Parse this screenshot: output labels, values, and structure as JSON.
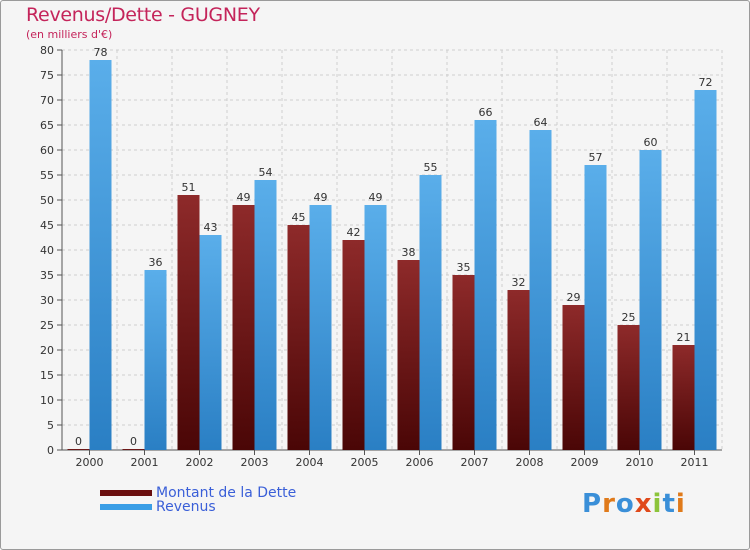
{
  "header": {
    "title": "Revenus/Dette - GUGNEY",
    "subtitle": "(en milliers d'€)"
  },
  "colors": {
    "dette": "#7a1515",
    "revenus": "#3a9ee6",
    "grid": "#cfcfcf",
    "title": "#c4245a"
  },
  "legend": {
    "items": [
      {
        "label": "Montant de la Dette",
        "color": "#6a0f0f"
      },
      {
        "label": "Revenus",
        "color": "#3a9ee6"
      }
    ]
  },
  "logo": {
    "text": "Proxiti",
    "icon": "proxiti-logo"
  },
  "chart_data": {
    "type": "bar",
    "title": "Revenus/Dette - GUGNEY",
    "ylabel": "(en milliers d'€)",
    "xlabel": "",
    "ylim": [
      0,
      80
    ],
    "ytick_step": 5,
    "grid": true,
    "legend_position": "bottom-left",
    "categories": [
      "2000",
      "2001",
      "2002",
      "2003",
      "2004",
      "2005",
      "2006",
      "2007",
      "2008",
      "2009",
      "2010",
      "2011"
    ],
    "series": [
      {
        "name": "Montant de la Dette",
        "values": [
          0,
          0,
          51,
          49,
          45,
          42,
          38,
          35,
          32,
          29,
          25,
          21
        ]
      },
      {
        "name": "Revenus",
        "values": [
          78,
          36,
          43,
          54,
          49,
          49,
          55,
          66,
          64,
          57,
          60,
          72
        ]
      }
    ]
  }
}
